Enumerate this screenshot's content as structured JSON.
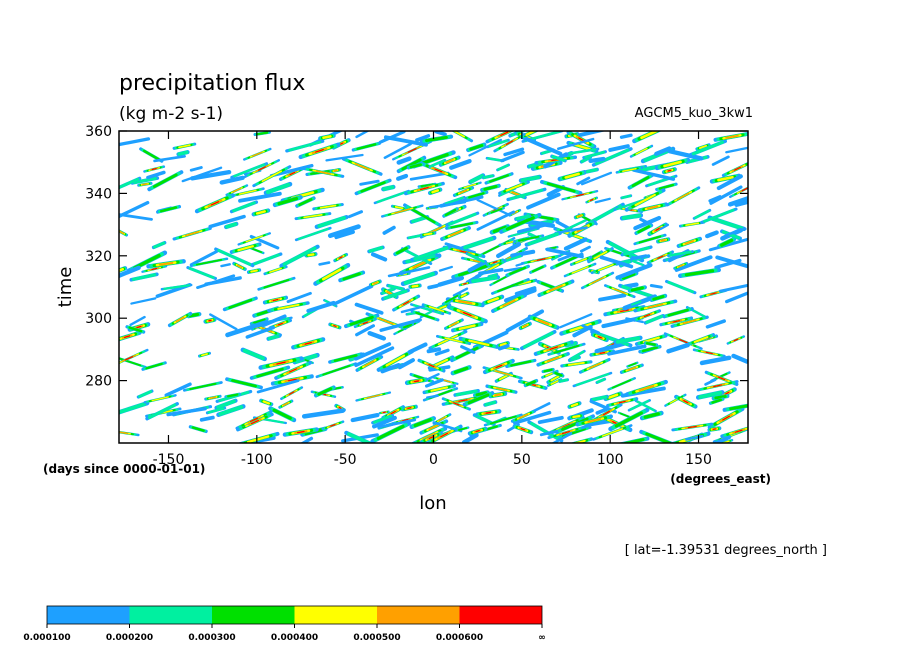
{
  "chart_data": {
    "type": "heatmap",
    "title": "precipitation flux",
    "units": "(kg m-2 s-1)",
    "model_label": "AGCM5_kuo_3kw1",
    "xlabel": "lon",
    "x_units": "(degrees_east)",
    "ylabel": "time",
    "y_units": "(days since 0000-01-01)",
    "subset_note": "[ lat=-1.39531 degrees_north ]",
    "xlim": [
      -178,
      178
    ],
    "ylim": [
      260,
      360
    ],
    "xticks": [
      "-150",
      "-100",
      "-50",
      "0",
      "50",
      "100",
      "150"
    ],
    "yticks": [
      "280",
      "300",
      "320",
      "340",
      "360"
    ],
    "xtick_values": [
      -150,
      -100,
      -50,
      0,
      50,
      100,
      150
    ],
    "ytick_values": [
      280,
      300,
      320,
      340,
      360
    ],
    "colorbar": {
      "levels": [
        "0.000100",
        "0.000200",
        "0.000300",
        "0.000400",
        "0.000500",
        "0.000600",
        "∞"
      ],
      "colors": [
        "#1ea0ff",
        "#00f0a0",
        "#00e000",
        "#ffff00",
        "#ffa000",
        "#ff0000"
      ]
    }
  }
}
